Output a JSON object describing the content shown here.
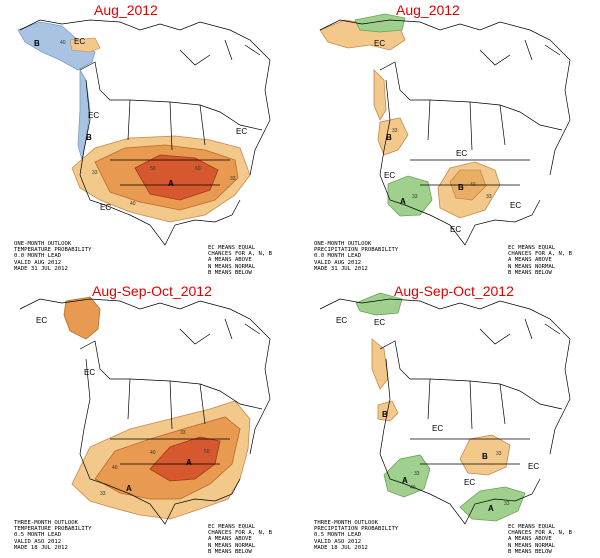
{
  "panels": [
    {
      "title": "Aug_2012",
      "caption": [
        "ONE-MONTH OUTLOOK",
        "TEMPERATURE PROBABILITY",
        "0.0 MONTH LEAD",
        "VALID AUG 2012",
        "MADE 31 JUL 2012"
      ],
      "legend": [
        "EC MEANS EQUAL",
        "CHANCES FOR A, N, B",
        "A MEANS ABOVE",
        "N MEANS NORMAL",
        "B MEANS BELOW"
      ],
      "labels": {
        "ec": "EC",
        "a": "A",
        "b": "B"
      },
      "contours": [
        "40",
        "33",
        "50",
        "60",
        "33",
        "40"
      ],
      "colors": {
        "above_light": "#f2c98a",
        "above_mid": "#e89a50",
        "above_dark": "#d6582e",
        "below": "#a9c4e3"
      }
    },
    {
      "title": "Aug_2012",
      "caption": [
        "ONE-MONTH OUTLOOK",
        "PRECIPITATION PROBABILITY",
        "0.0 MONTH LEAD",
        "VALID AUG 2012",
        "MADE 31 JUL 2012"
      ],
      "legend": [
        "EC MEANS EQUAL",
        "CHANCES FOR A, N, B",
        "A MEANS ABOVE",
        "N MEANS NORMAL",
        "B MEANS BELOW"
      ],
      "labels": {
        "ec": "EC",
        "a": "A",
        "b": "B"
      },
      "contours": [
        "33",
        "40",
        "33",
        "33"
      ],
      "colors": {
        "below": "#f2c98a",
        "above": "#9fd08e"
      }
    },
    {
      "title": "Aug-Sep-Oct_2012",
      "caption": [
        "THREE-MONTH OUTLOOK",
        "TEMPERATURE PROBABILITY",
        "0.5 MONTH LEAD",
        "VALID ASO 2012",
        "MADE 18 JUL 2012"
      ],
      "legend": [
        "EC MEANS EQUAL",
        "CHANCES FOR A, N, B",
        "A MEANS ABOVE",
        "N MEANS NORMAL",
        "B MEANS BELOW"
      ],
      "labels": {
        "ec": "EC",
        "a": "A"
      },
      "contours": [
        "33",
        "40",
        "50",
        "40",
        "33"
      ],
      "colors": {
        "above_light": "#f2c98a",
        "above_mid": "#e89a50",
        "above_dark": "#d6582e"
      }
    },
    {
      "title": "Aug-Sep-Oct_2012",
      "caption": [
        "THREE-MONTH OUTLOOK",
        "PRECIPITATION PROBABILITY",
        "0.5 MONTH LEAD",
        "VALID ASO 2012",
        "MADE 18 JUL 2012"
      ],
      "legend": [
        "EC MEANS EQUAL",
        "CHANCES FOR A, N, B",
        "A MEANS ABOVE",
        "N MEANS NORMAL",
        "B MEANS BELOW"
      ],
      "labels": {
        "ec": "EC",
        "a": "A",
        "b": "B"
      },
      "contours": [
        "33",
        "40",
        "33",
        "33"
      ],
      "colors": {
        "below": "#f2c98a",
        "above": "#9fd08e"
      }
    }
  ]
}
